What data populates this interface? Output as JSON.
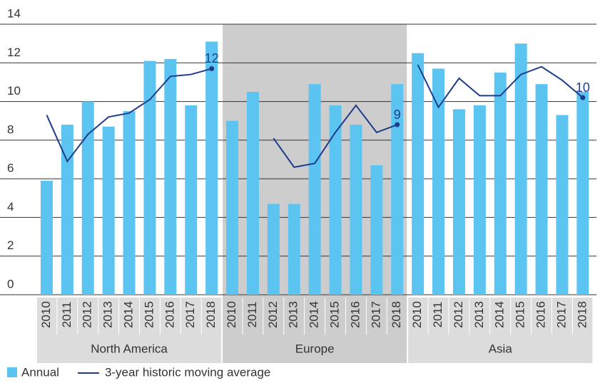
{
  "chart_data": {
    "type": "bar",
    "groups": [
      {
        "name": "North America",
        "shaded": false,
        "categories": [
          "2010",
          "2011",
          "2012",
          "2013",
          "2014",
          "2015",
          "2016",
          "2017",
          "2018"
        ]
      },
      {
        "name": "Europe",
        "shaded": true,
        "categories": [
          "2010",
          "2011",
          "2012",
          "2013",
          "2014",
          "2015",
          "2016",
          "2017",
          "2018"
        ]
      },
      {
        "name": "Asia",
        "shaded": false,
        "categories": [
          "2010",
          "2011",
          "2012",
          "2013",
          "2014",
          "2015",
          "2016",
          "2017",
          "2018"
        ]
      }
    ],
    "series": [
      {
        "name": "Annual",
        "type": "bar",
        "color": "#5bc4f1",
        "values": [
          5.9,
          8.8,
          10.0,
          8.7,
          9.5,
          12.1,
          12.2,
          9.8,
          13.1,
          9.0,
          10.5,
          4.7,
          4.7,
          10.9,
          9.8,
          8.8,
          6.7,
          10.9,
          12.5,
          11.7,
          9.6,
          9.8,
          11.5,
          13.0,
          10.9,
          9.3,
          10.5
        ]
      },
      {
        "name": "3-year historic moving average",
        "type": "line",
        "color": "#1e3c8c",
        "values": [
          9.3,
          6.9,
          8.3,
          9.2,
          9.4,
          10.1,
          11.3,
          11.4,
          11.7,
          null,
          null,
          8.1,
          6.6,
          6.8,
          8.4,
          9.8,
          8.4,
          8.8,
          11.9,
          9.7,
          11.2,
          10.3,
          10.3,
          11.4,
          11.8,
          11.1,
          10.2
        ],
        "value_labels": [
          null,
          null,
          null,
          null,
          null,
          null,
          null,
          null,
          "12",
          null,
          null,
          null,
          null,
          null,
          null,
          null,
          null,
          "9",
          null,
          null,
          null,
          null,
          null,
          null,
          null,
          null,
          "10"
        ]
      }
    ],
    "ylim": [
      0,
      14
    ],
    "yticks": [
      0,
      2,
      4,
      6,
      8,
      10,
      12,
      14
    ],
    "grid": true
  }
}
